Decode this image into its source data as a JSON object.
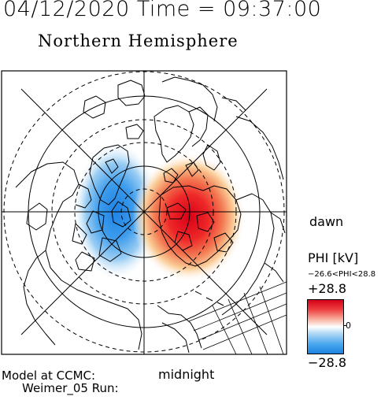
{
  "header": {
    "datetime": "04/12/2020 Time = 09:37:00",
    "title": "Northern Hemisphere"
  },
  "map": {
    "orientation": {
      "dawn": "dawn",
      "midnight": "midnight"
    },
    "potential_pattern": {
      "positive_cell": "dawn side",
      "negative_cell": "dusk side",
      "max_kV": 28.8,
      "min_kV": -26.6
    },
    "grid": {
      "latitude_circles_solid_deg": [
        80,
        60
      ],
      "latitude_circles_dashed_deg": [
        85,
        75,
        70,
        50
      ]
    },
    "colors": {
      "positive": "#e8101e",
      "negative": "#2a8ee8",
      "coastline": "#000000"
    }
  },
  "colorbar": {
    "label": "PHI [kV]",
    "range_text": "−26.6<PHI<28.8",
    "max_label": "+28.8",
    "zero_label": "0",
    "min_label": "−28.8",
    "scale_max": 28.8,
    "scale_min": -28.8
  },
  "model": {
    "line1": "Model at CCMC:",
    "line2": "Weimer_05 Run:"
  }
}
